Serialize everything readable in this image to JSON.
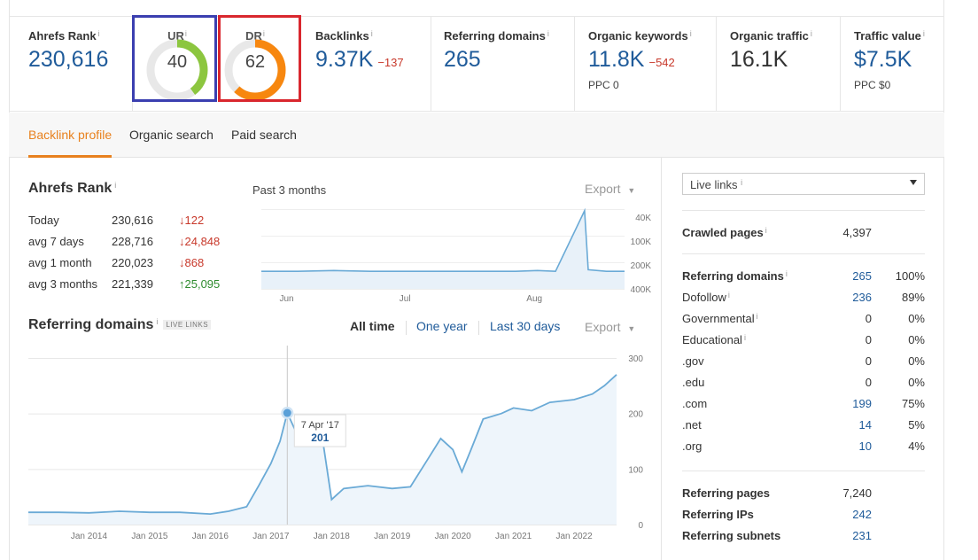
{
  "metrics": {
    "ahrefs_rank": {
      "label": "Ahrefs Rank",
      "value": "230,616"
    },
    "ur": {
      "label": "UR",
      "value": "40",
      "score": 40,
      "color": "#8cc63f"
    },
    "dr": {
      "label": "DR",
      "value": "62",
      "score": 62,
      "color": "#f7870f"
    },
    "backlinks": {
      "label": "Backlinks",
      "value": "9.37K",
      "delta": "−137"
    },
    "referring_domains": {
      "label": "Referring domains",
      "value": "265"
    },
    "organic_keywords": {
      "label": "Organic keywords",
      "value": "11.8K",
      "delta": "−542",
      "sub": "PPC 0"
    },
    "organic_traffic": {
      "label": "Organic traffic",
      "value": "16.1K"
    },
    "traffic_value": {
      "label": "Traffic value",
      "value": "$7.5K",
      "sub": "PPC $0"
    }
  },
  "info_glyph": "i",
  "tabs": [
    {
      "label": "Backlink profile",
      "active": true
    },
    {
      "label": "Organic search",
      "active": false
    },
    {
      "label": "Paid search",
      "active": false
    }
  ],
  "ahrefs_rank_panel": {
    "title": "Ahrefs Rank",
    "period": "Past 3 months",
    "export": "Export",
    "rows": [
      {
        "label": "Today",
        "value": "230,616",
        "change": "↓122",
        "dir": "down"
      },
      {
        "label": "avg 7 days",
        "value": "228,716",
        "change": "↓24,848",
        "dir": "down"
      },
      {
        "label": "avg 1 month",
        "value": "220,023",
        "change": "↓868",
        "dir": "down"
      },
      {
        "label": "avg 3 months",
        "value": "221,339",
        "change": "↑25,095",
        "dir": "up"
      }
    ]
  },
  "referring_domains_panel": {
    "title": "Referring domains",
    "badge": "LIVE LINKS",
    "ranges": [
      "All time",
      "One year",
      "Last 30 days"
    ],
    "export": "Export",
    "tooltip": {
      "date": "7 Apr '17",
      "value": "201"
    }
  },
  "right_panel": {
    "select_value": "Live links",
    "crawled": {
      "label": "Crawled pages",
      "value": "4,397"
    },
    "domains": [
      {
        "label": "Referring domains",
        "value": "265",
        "pct": "100%",
        "bold": true,
        "blue": true,
        "info": true
      },
      {
        "label": "Dofollow",
        "value": "236",
        "pct": "89%",
        "bold": false,
        "blue": true,
        "info": true
      },
      {
        "label": "Governmental",
        "value": "0",
        "pct": "0%",
        "bold": false,
        "blue": false,
        "info": true
      },
      {
        "label": "Educational",
        "value": "0",
        "pct": "0%",
        "bold": false,
        "blue": false,
        "info": true
      },
      {
        "label": ".gov",
        "value": "0",
        "pct": "0%",
        "bold": false,
        "blue": false,
        "info": false
      },
      {
        "label": ".edu",
        "value": "0",
        "pct": "0%",
        "bold": false,
        "blue": false,
        "info": false
      },
      {
        "label": ".com",
        "value": "199",
        "pct": "75%",
        "bold": false,
        "blue": true,
        "info": false
      },
      {
        "label": ".net",
        "value": "14",
        "pct": "5%",
        "bold": false,
        "blue": true,
        "info": false
      },
      {
        "label": ".org",
        "value": "10",
        "pct": "4%",
        "bold": false,
        "blue": true,
        "info": false
      }
    ],
    "bottom": [
      {
        "label": "Referring pages",
        "value": "7,240",
        "blue": false
      },
      {
        "label": "Referring IPs",
        "value": "242",
        "blue": true
      },
      {
        "label": "Referring subnets",
        "value": "231",
        "blue": true
      }
    ]
  },
  "chart_data": [
    {
      "type": "line",
      "title": "Ahrefs Rank",
      "x_ticks": [
        "Jun",
        "Jul",
        "Aug"
      ],
      "y_ticks": [
        "40K",
        "100K",
        "200K",
        "400K"
      ],
      "y_inverted": true,
      "color": "#6aaad6",
      "points": [
        [
          0,
          0.22
        ],
        [
          0.1,
          0.22
        ],
        [
          0.2,
          0.23
        ],
        [
          0.3,
          0.22
        ],
        [
          0.4,
          0.22
        ],
        [
          0.5,
          0.22
        ],
        [
          0.6,
          0.22
        ],
        [
          0.7,
          0.22
        ],
        [
          0.76,
          0.23
        ],
        [
          0.81,
          0.22
        ],
        [
          0.89,
          0.98
        ],
        [
          0.9,
          0.24
        ],
        [
          0.95,
          0.22
        ],
        [
          1,
          0.22
        ]
      ]
    },
    {
      "type": "area",
      "title": "Referring domains",
      "x_ticks": [
        "Jan 2014",
        "Jan 2015",
        "Jan 2016",
        "Jan 2017",
        "Jan 2018",
        "Jan 2019",
        "Jan 2020",
        "Jan 2021",
        "Jan 2022"
      ],
      "y_ticks": [
        "0",
        "100",
        "200",
        "300"
      ],
      "ylim": [
        0,
        300
      ],
      "color": "#6aaad6",
      "series": [
        {
          "x": 2013.0,
          "y": 22
        },
        {
          "x": 2013.5,
          "y": 22
        },
        {
          "x": 2014.0,
          "y": 21
        },
        {
          "x": 2014.5,
          "y": 24
        },
        {
          "x": 2015.0,
          "y": 22
        },
        {
          "x": 2015.5,
          "y": 22
        },
        {
          "x": 2016.0,
          "y": 19
        },
        {
          "x": 2016.3,
          "y": 24
        },
        {
          "x": 2016.6,
          "y": 32
        },
        {
          "x": 2016.8,
          "y": 70
        },
        {
          "x": 2017.0,
          "y": 110
        },
        {
          "x": 2017.15,
          "y": 150
        },
        {
          "x": 2017.27,
          "y": 201
        },
        {
          "x": 2017.4,
          "y": 170
        },
        {
          "x": 2017.6,
          "y": 165
        },
        {
          "x": 2017.85,
          "y": 155
        },
        {
          "x": 2018.0,
          "y": 45
        },
        {
          "x": 2018.2,
          "y": 65
        },
        {
          "x": 2018.6,
          "y": 70
        },
        {
          "x": 2019.0,
          "y": 65
        },
        {
          "x": 2019.3,
          "y": 68
        },
        {
          "x": 2019.6,
          "y": 120
        },
        {
          "x": 2019.8,
          "y": 155
        },
        {
          "x": 2020.0,
          "y": 135
        },
        {
          "x": 2020.15,
          "y": 95
        },
        {
          "x": 2020.3,
          "y": 135
        },
        {
          "x": 2020.5,
          "y": 190
        },
        {
          "x": 2020.8,
          "y": 200
        },
        {
          "x": 2021.0,
          "y": 210
        },
        {
          "x": 2021.3,
          "y": 205
        },
        {
          "x": 2021.6,
          "y": 220
        },
        {
          "x": 2022.0,
          "y": 225
        },
        {
          "x": 2022.3,
          "y": 235
        },
        {
          "x": 2022.5,
          "y": 250
        },
        {
          "x": 2022.7,
          "y": 270
        }
      ],
      "xlim": [
        2013.0,
        2022.7
      ]
    }
  ]
}
